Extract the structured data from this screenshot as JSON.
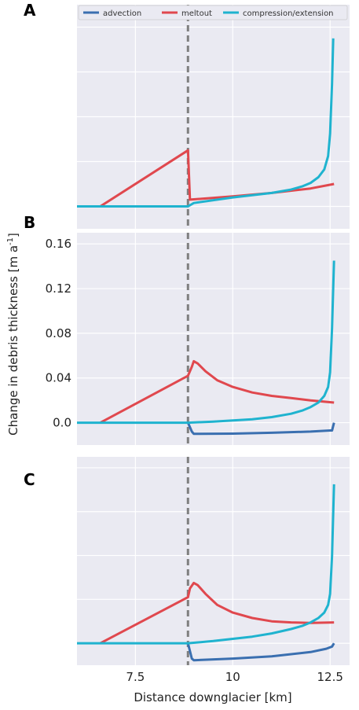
{
  "colors": {
    "advection": "#3a6fb0",
    "meltout": "#e0484e",
    "compression_extension": "#1fb3cf",
    "background": "#eaeaf2",
    "grid": "#ffffff",
    "divider": "#7f7f7f"
  },
  "figure": {
    "ylabel": "Change in debris thickness  [m a",
    "ylabel_sup": "-1",
    "ylabel_end": "]",
    "xlabel": "Distance downglacier [km]"
  },
  "legend": {
    "placement": "top",
    "entries": [
      "advection",
      "meltout",
      "compression/extension"
    ]
  },
  "chart_data": [
    {
      "panel": "A",
      "type": "line",
      "xlim": [
        6.0,
        13.0
      ],
      "ylim": [
        -0.02,
        0.18
      ],
      "xticks_hidden": [
        7.5,
        10,
        12.5
      ],
      "yticks_hidden": [
        0.0,
        0.04,
        0.08,
        0.12,
        0.16
      ],
      "divider_x": 8.85,
      "series": [
        {
          "name": "advection",
          "x": [
            6.0,
            8.85
          ],
          "y": [
            0.0,
            0.0
          ]
        },
        {
          "name": "meltout",
          "x": [
            6.6,
            8.85,
            8.9,
            10.0,
            11.0,
            12.0,
            12.6
          ],
          "y": [
            0.0,
            0.05,
            0.006,
            0.009,
            0.012,
            0.016,
            0.02
          ]
        },
        {
          "name": "compression/extension",
          "x": [
            6.0,
            8.85,
            9.0,
            10.0,
            11.0,
            11.5,
            11.8,
            12.0,
            12.2,
            12.35,
            12.45,
            12.5,
            12.55,
            12.58
          ],
          "y": [
            0.0,
            0.0,
            0.003,
            0.008,
            0.012,
            0.015,
            0.018,
            0.021,
            0.026,
            0.033,
            0.045,
            0.065,
            0.11,
            0.15
          ]
        }
      ]
    },
    {
      "panel": "B",
      "type": "line",
      "xlim": [
        6.0,
        13.0
      ],
      "ylim": [
        -0.02,
        0.17
      ],
      "xticks_hidden": [
        7.5,
        10,
        12.5
      ],
      "yticks": [
        0.0,
        0.04,
        0.08,
        0.12,
        0.16
      ],
      "ytick_labels": [
        "0.0",
        "0.04",
        "0.08",
        "0.12",
        "0.16"
      ],
      "divider_x": 8.85,
      "series": [
        {
          "name": "advection",
          "x": [
            8.85,
            8.95,
            9.0,
            10.0,
            11.0,
            12.0,
            12.5,
            12.55,
            12.6
          ],
          "y": [
            0.0,
            -0.008,
            -0.01,
            -0.0098,
            -0.009,
            -0.008,
            -0.007,
            -0.007,
            0.0
          ]
        },
        {
          "name": "meltout",
          "x": [
            6.6,
            8.85,
            8.95,
            9.0,
            9.1,
            9.3,
            9.6,
            10.0,
            10.5,
            11.0,
            11.5,
            12.0,
            12.6
          ],
          "y": [
            0.0,
            0.042,
            0.05,
            0.055,
            0.053,
            0.046,
            0.038,
            0.032,
            0.027,
            0.024,
            0.022,
            0.02,
            0.018
          ]
        },
        {
          "name": "compression/extension",
          "x": [
            6.0,
            8.85,
            9.5,
            10.0,
            10.5,
            11.0,
            11.5,
            11.8,
            12.0,
            12.2,
            12.35,
            12.45,
            12.5,
            12.55,
            12.6
          ],
          "y": [
            0.0,
            0.0,
            0.001,
            0.002,
            0.003,
            0.005,
            0.008,
            0.011,
            0.014,
            0.018,
            0.024,
            0.032,
            0.045,
            0.085,
            0.145
          ]
        }
      ]
    },
    {
      "panel": "C",
      "type": "line",
      "xlim": [
        6.0,
        13.0
      ],
      "ylim": [
        -0.02,
        0.17
      ],
      "xticks": [
        7.5,
        10,
        12.5
      ],
      "xtick_labels": [
        "7.5",
        "10",
        "12.5"
      ],
      "yticks_hidden": [
        0.0,
        0.04,
        0.08,
        0.12,
        0.16
      ],
      "divider_x": 8.85,
      "series": [
        {
          "name": "advection",
          "x": [
            8.85,
            8.95,
            9.0,
            10.0,
            11.0,
            12.0,
            12.4,
            12.55,
            12.6
          ],
          "y": [
            0.0,
            -0.014,
            -0.0155,
            -0.014,
            -0.012,
            -0.008,
            -0.005,
            -0.003,
            0.0
          ]
        },
        {
          "name": "meltout",
          "x": [
            6.6,
            8.85,
            8.9,
            9.0,
            9.1,
            9.3,
            9.6,
            10.0,
            10.5,
            11.0,
            11.5,
            12.0,
            12.6
          ],
          "y": [
            0.0,
            0.042,
            0.05,
            0.055,
            0.053,
            0.045,
            0.035,
            0.028,
            0.023,
            0.02,
            0.019,
            0.0185,
            0.019
          ]
        },
        {
          "name": "compression/extension",
          "x": [
            6.0,
            8.85,
            9.5,
            10.0,
            10.5,
            11.0,
            11.5,
            11.8,
            12.0,
            12.2,
            12.35,
            12.45,
            12.5,
            12.55,
            12.6
          ],
          "y": [
            0.0,
            0.0,
            0.002,
            0.004,
            0.006,
            0.009,
            0.013,
            0.016,
            0.019,
            0.023,
            0.028,
            0.035,
            0.045,
            0.08,
            0.145
          ]
        }
      ]
    }
  ]
}
